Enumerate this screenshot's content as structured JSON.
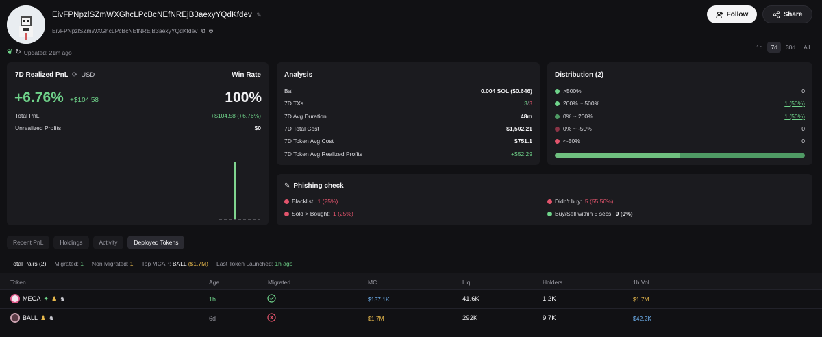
{
  "profile": {
    "name": "EivFPNpzlSZmWXGhcLPcBcNEfNREjB3aexyYQdKfdev",
    "address": "EivFPNpzlSZmWXGhcLPcBcNEfNREjB3aexyYQdKfdev",
    "updated": "Updated: 21m ago",
    "follow_label": "Follow",
    "share_label": "Share"
  },
  "periods": [
    "1d",
    "7d",
    "30d",
    "All"
  ],
  "pnl": {
    "title": "7D Realized PnL",
    "currency": "USD",
    "winrate_label": "Win Rate",
    "pct": "+6.76%",
    "amount": "+$104.58",
    "winrate": "100%",
    "total_label": "Total PnL",
    "total_value": "+$104.58 (+6.76%)",
    "unrealized_label": "Unrealized Profits",
    "unrealized_value": "$0",
    "histogram_colors": {
      "bar": "#7fd48f"
    }
  },
  "analysis": {
    "title": "Analysis",
    "rows": [
      {
        "label": "Bal",
        "value": "0.004 SOL ($0.646)"
      },
      {
        "label": "7D TXs",
        "value_green": "3",
        "value_red": "3"
      },
      {
        "label": "7D Avg Duration",
        "value": "48m"
      },
      {
        "label": "7D Total Cost",
        "value": "$1,502.21"
      },
      {
        "label": "7D Token Avg Cost",
        "value": "$751.1"
      },
      {
        "label": "7D Token Avg Realized Profits",
        "value": "+$52.29"
      }
    ]
  },
  "distribution": {
    "title": "Distribution (2)",
    "rows": [
      {
        "label": ">500%",
        "value": "0",
        "color": "#6fd38a"
      },
      {
        "label": "200% ~ 500%",
        "value": "1 (50%)",
        "color": "#6fd38a"
      },
      {
        "label": "0% ~ 200%",
        "value": "1 (50%)",
        "color": "#4f9a64"
      },
      {
        "label": "0% ~ -50%",
        "value": "0",
        "color": "#8a3446"
      },
      {
        "label": "<-50%",
        "value": "0",
        "color": "#e2546c"
      }
    ],
    "bar_fraction_green": 0.5
  },
  "phishing": {
    "title": "Phishing check",
    "blacklist_label": "Blacklist:",
    "blacklist_value": "1 (25%)",
    "sold_label": "Sold > Bought:",
    "sold_value": "1 (25%)",
    "didnt_buy_label": "Didn't buy:",
    "didnt_buy_value": "5 (55.56%)",
    "buysell_label": "Buy/Sell within 5 secs:",
    "buysell_value": "0 (0%)"
  },
  "tabs": [
    "Recent PnL",
    "Holdings",
    "Activity",
    "Deployed Tokens"
  ],
  "summary": {
    "total_label": "Total Pairs (2)",
    "migrated_label": "Migrated:",
    "migrated_value": "1",
    "non_migrated_label": "Non Migrated:",
    "non_migrated_value": "1",
    "top_mcap_label": "Top MCAP:",
    "top_mcap_token": "BALL",
    "top_mcap_value": "($1.7M)",
    "last_label": "Last Token Launched:",
    "last_value": "1h ago"
  },
  "table": {
    "headers": [
      "Token",
      "Age",
      "Migrated",
      "MC",
      "Liq",
      "Holders",
      "1h Vol"
    ],
    "rows": [
      {
        "token": "MEGA",
        "age": "1h",
        "migrated": true,
        "mc": "$137.1K",
        "liq": "41.6K",
        "holders": "1.2K",
        "vol": "$1.7M"
      },
      {
        "token": "BALL",
        "age": "6d",
        "migrated": false,
        "mc": "$1.7M",
        "liq": "292K",
        "holders": "9.7K",
        "vol": "$42.2K"
      }
    ]
  }
}
